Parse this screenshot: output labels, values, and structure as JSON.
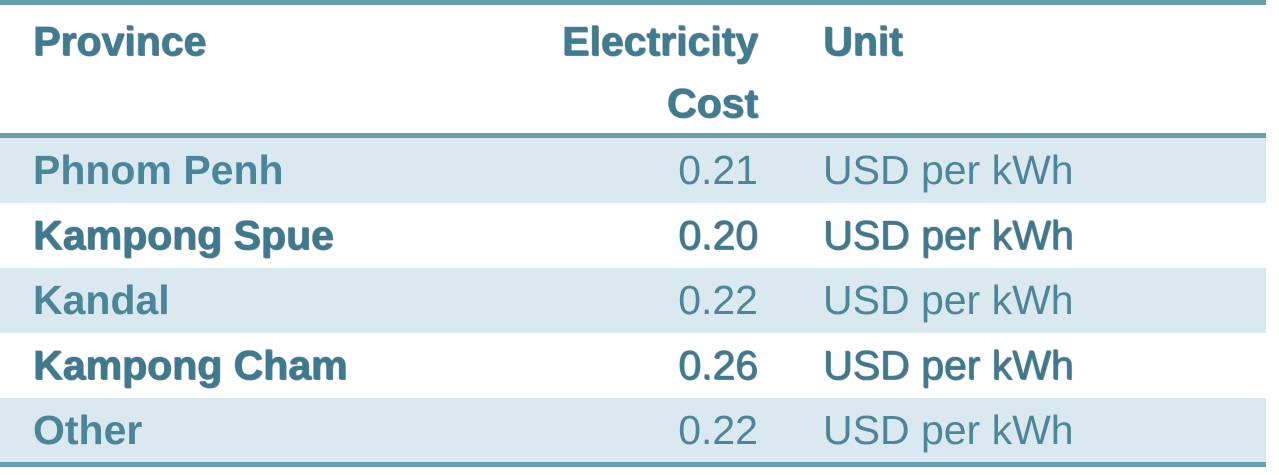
{
  "table": {
    "headers": {
      "province": "Province",
      "cost_line1": "Electricity",
      "cost_line2": "Cost",
      "unit": "Unit"
    },
    "rows": [
      {
        "province": "Phnom Penh",
        "cost": "0.21",
        "unit": "USD per kWh"
      },
      {
        "province": "Kampong Spue",
        "cost": "0.20",
        "unit": "USD per kWh"
      },
      {
        "province": "Kandal",
        "cost": "0.22",
        "unit": "USD per kWh"
      },
      {
        "province": "Kampong Cham",
        "cost": "0.26",
        "unit": "USD per kWh"
      },
      {
        "province": "Other",
        "cost": "0.22",
        "unit": "USD per kWh"
      }
    ]
  },
  "colors": {
    "rule": "#6a9fae",
    "shaded_row": "#dae9ef",
    "text": "#3f7c91"
  }
}
